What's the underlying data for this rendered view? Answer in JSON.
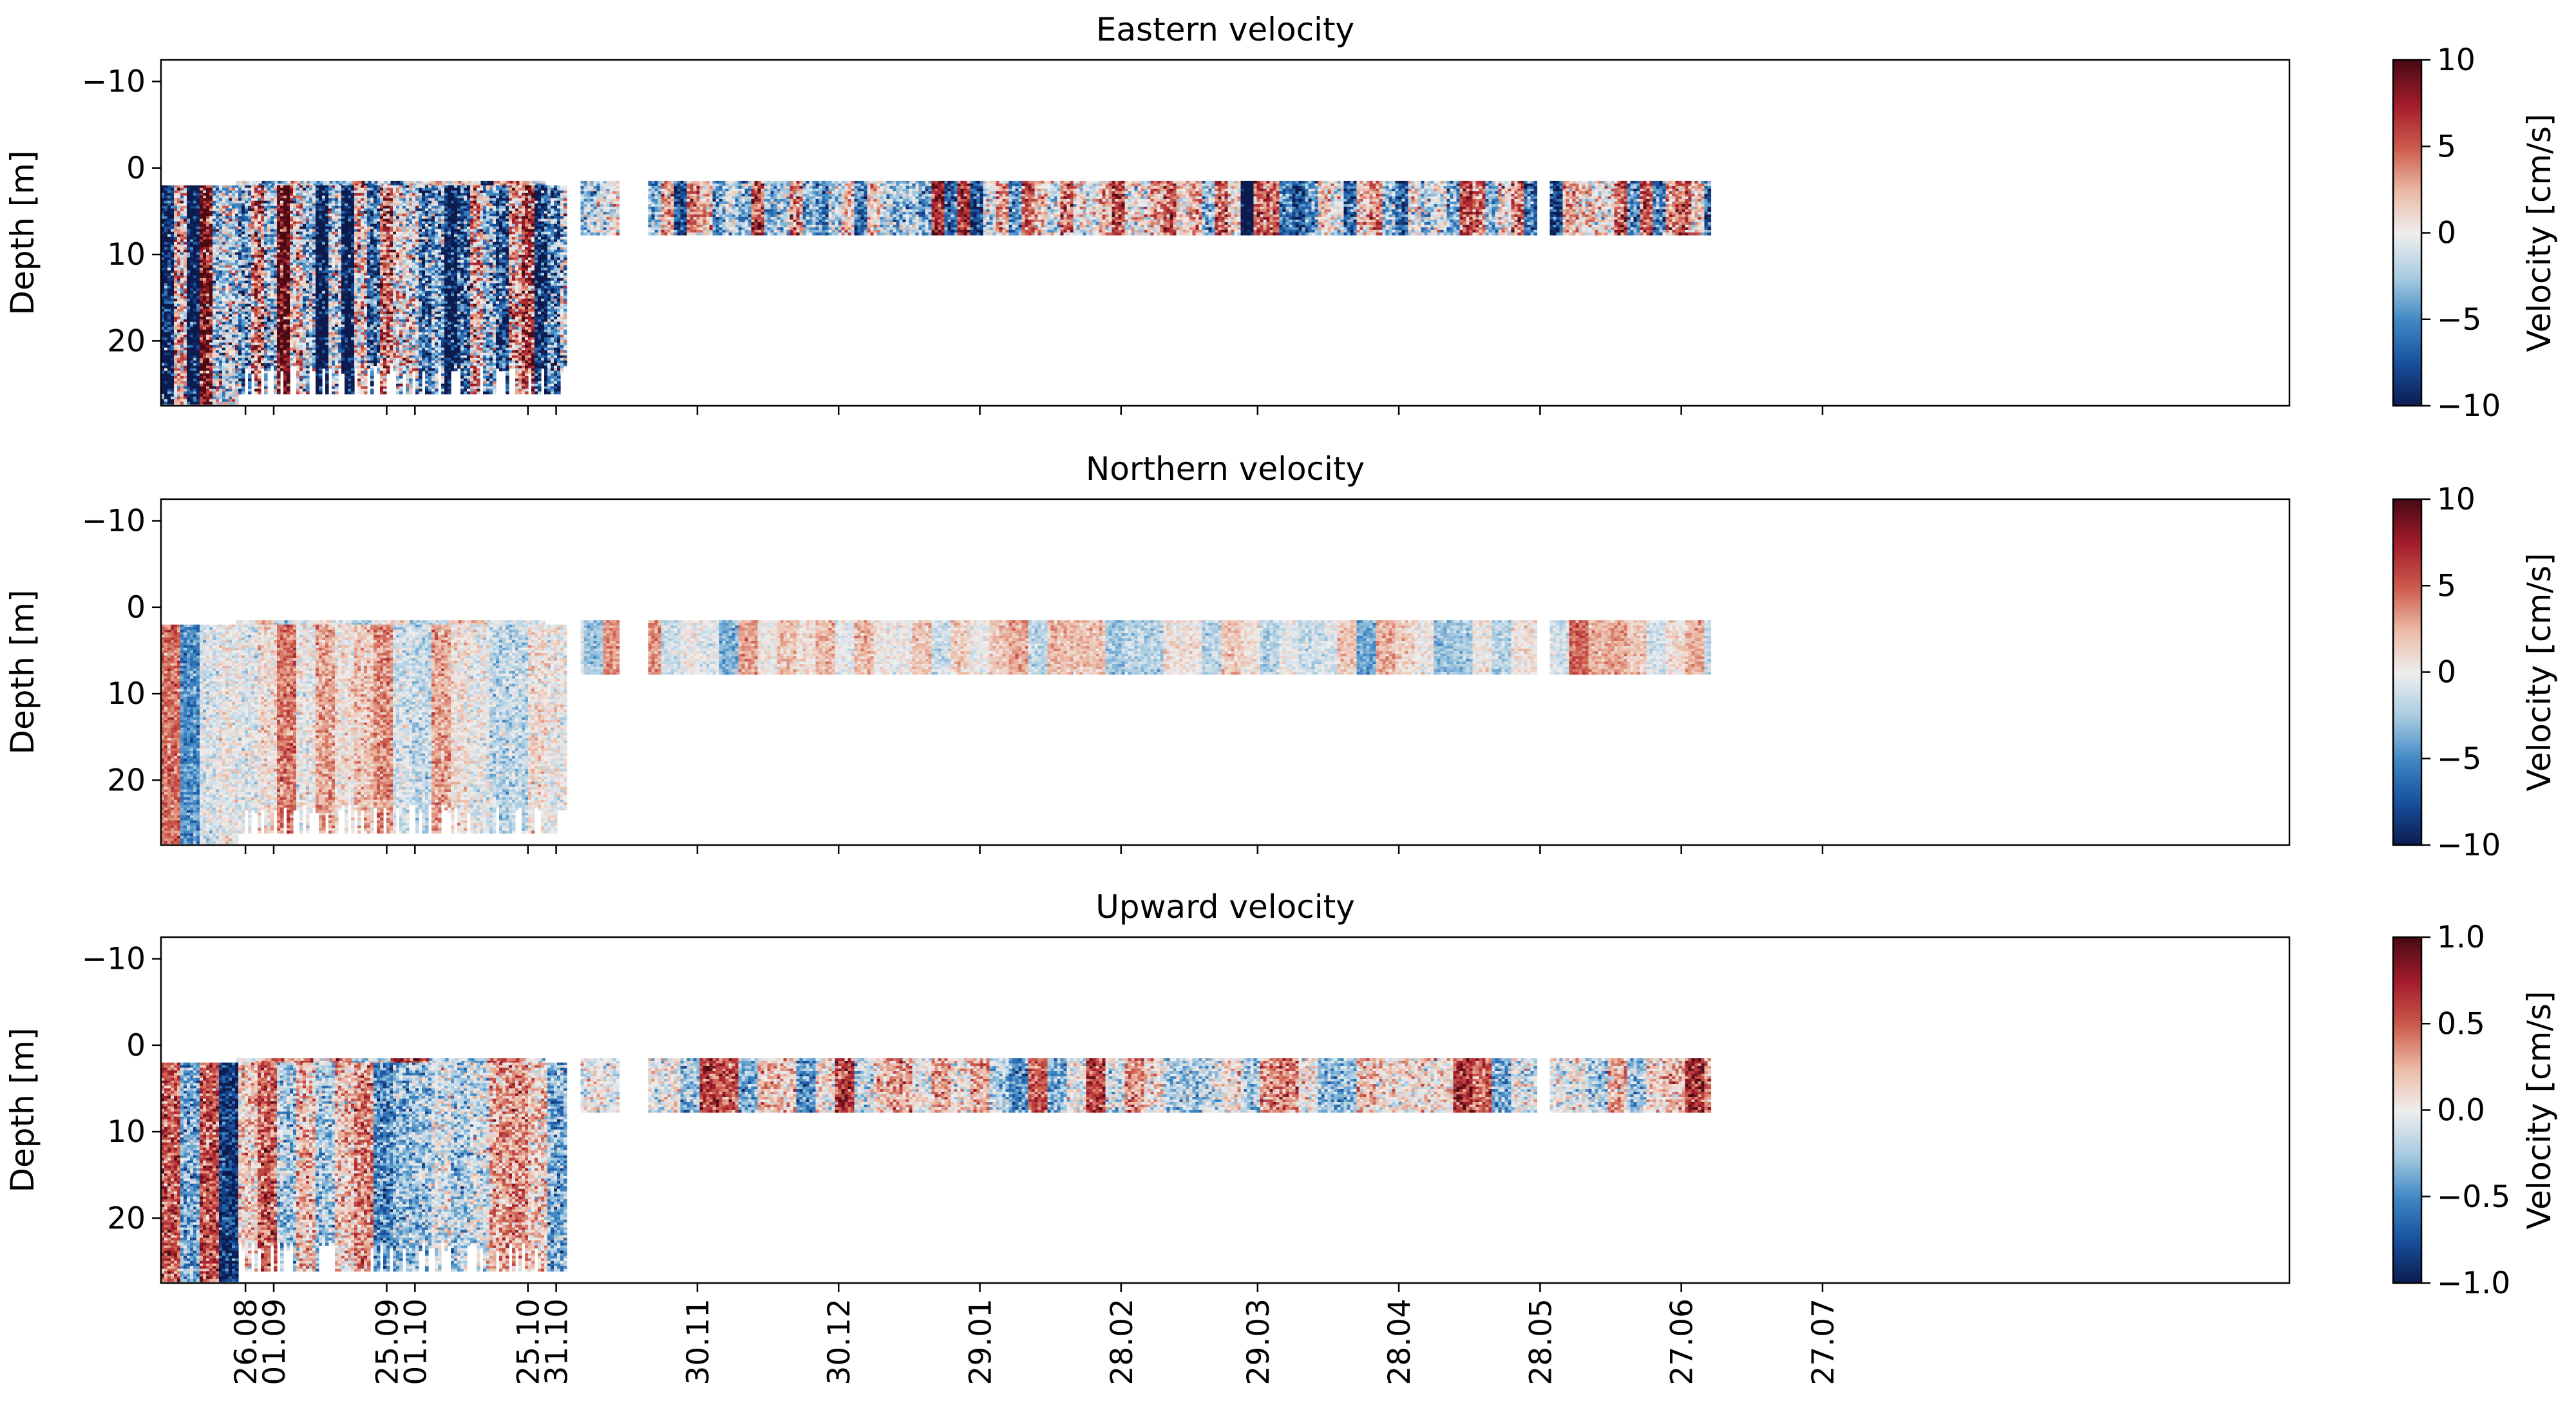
{
  "figure": {
    "background": "#ffffff",
    "colormap": [
      "#0d1a4d",
      "#174f9c",
      "#3f88c4",
      "#a8cbe1",
      "#eeeeee",
      "#ecb9a4",
      "#cc5a4c",
      "#a31c2c",
      "#4a0a14"
    ]
  },
  "chart_data": [
    {
      "type": "heatmap",
      "title": "Eastern velocity",
      "ylabel": "Depth [m]",
      "ylim": [
        27.5,
        -12.5
      ],
      "yticks": [
        -10,
        0,
        10,
        20
      ],
      "x_tick_labels": [
        "01.09",
        "01.10",
        "31.10",
        "30.11",
        "30.12",
        "29.01",
        "28.02",
        "29.03",
        "28.04",
        "28.05",
        "27.06",
        "27.07",
        "26.08",
        "25.09",
        "25.10"
      ],
      "x_range_days_from_first_tick": [
        -8,
        444
      ],
      "deployments": [
        {
          "start": "24.08",
          "end": "03.07",
          "depth_range_m": [
            1.5,
            7.5
          ],
          "gaps": [
            [
              "29.10",
              "05.11"
            ],
            [
              "14.11",
              "19.11"
            ],
            [
              "28.05",
              "30.05"
            ]
          ]
        },
        {
          "start": "03.07",
          "end": "02.11",
          "depth_range_m": [
            2,
            26
          ]
        }
      ],
      "colorbar": {
        "label": "Velocity [cm/s]",
        "range": [
          -10,
          10
        ],
        "ticks": [
          "10",
          "5",
          "0",
          "−5",
          "−10"
        ]
      }
    },
    {
      "type": "heatmap",
      "title": "Northern velocity",
      "ylabel": "Depth [m]",
      "ylim": [
        27.5,
        -12.5
      ],
      "yticks": [
        -10,
        0,
        10,
        20
      ],
      "x_tick_labels": [
        "01.09",
        "01.10",
        "31.10",
        "30.11",
        "30.12",
        "29.01",
        "28.02",
        "29.03",
        "28.04",
        "28.05",
        "27.06",
        "27.07",
        "26.08",
        "25.09",
        "25.10"
      ],
      "x_range_days_from_first_tick": [
        -8,
        444
      ],
      "deployments": [
        {
          "start": "24.08",
          "end": "03.07",
          "depth_range_m": [
            1.5,
            7.5
          ],
          "gaps": [
            [
              "29.10",
              "05.11"
            ],
            [
              "14.11",
              "19.11"
            ],
            [
              "28.05",
              "30.05"
            ]
          ]
        },
        {
          "start": "03.07",
          "end": "02.11",
          "depth_range_m": [
            2,
            26
          ]
        }
      ],
      "colorbar": {
        "label": "Velocity [cm/s]",
        "range": [
          -10,
          10
        ],
        "ticks": [
          "10",
          "5",
          "0",
          "−5",
          "−10"
        ]
      }
    },
    {
      "type": "heatmap",
      "title": "Upward velocity",
      "ylabel": "Depth [m]",
      "ylim": [
        27.5,
        -12.5
      ],
      "yticks": [
        -10,
        0,
        10,
        20
      ],
      "x_tick_labels": [
        "01.09",
        "01.10",
        "31.10",
        "30.11",
        "30.12",
        "29.01",
        "28.02",
        "29.03",
        "28.04",
        "28.05",
        "27.06",
        "27.07",
        "26.08",
        "25.09",
        "25.10"
      ],
      "x_range_days_from_first_tick": [
        -8,
        444
      ],
      "deployments": [
        {
          "start": "24.08",
          "end": "03.07",
          "depth_range_m": [
            1.5,
            7.5
          ],
          "gaps": [
            [
              "29.10",
              "05.11"
            ],
            [
              "14.11",
              "19.11"
            ],
            [
              "28.05",
              "30.05"
            ]
          ]
        },
        {
          "start": "03.07",
          "end": "02.11",
          "depth_range_m": [
            2,
            26
          ]
        }
      ],
      "colorbar": {
        "label": "Velocity [cm/s]",
        "range": [
          -1.0,
          1.0
        ],
        "ticks": [
          "1.0",
          "0.5",
          "0.0",
          "−0.5",
          "−1.0"
        ]
      }
    }
  ]
}
